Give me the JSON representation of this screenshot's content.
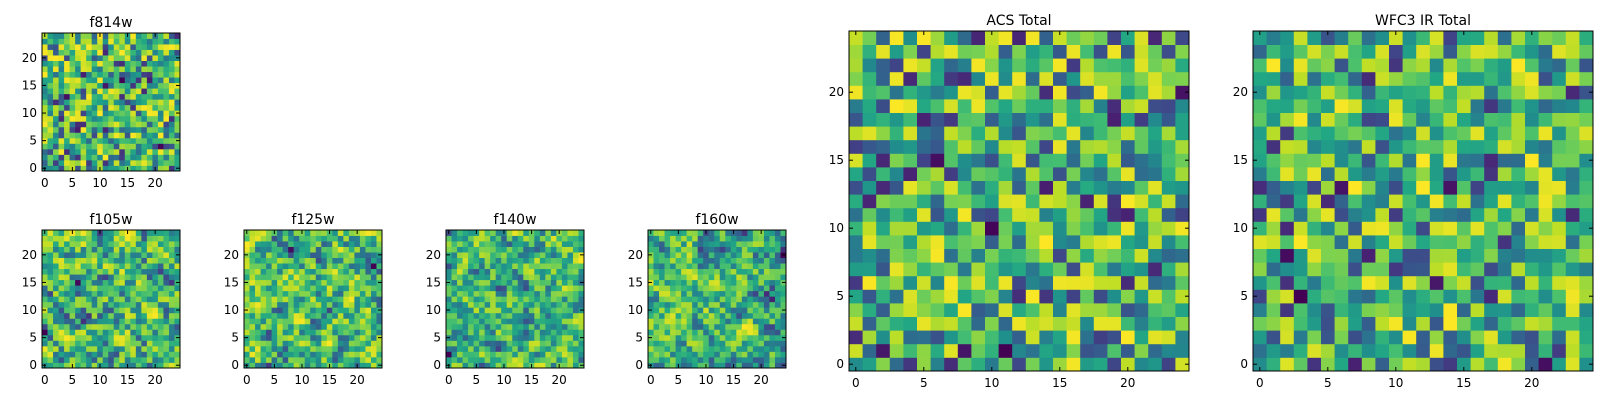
{
  "chart_data": [
    {
      "type": "heatmap",
      "title": "f814w",
      "x_ticks": [
        "0",
        "5",
        "10",
        "15",
        "20"
      ],
      "y_ticks": [
        "0",
        "5",
        "10",
        "15",
        "20"
      ],
      "grid_size": 25,
      "colormap": "viridis",
      "seed": 11,
      "smooth": 0
    },
    {
      "type": "heatmap",
      "title": "f105w",
      "x_ticks": [
        "0",
        "5",
        "10",
        "15",
        "20"
      ],
      "y_ticks": [
        "0",
        "5",
        "10",
        "15",
        "20"
      ],
      "grid_size": 25,
      "colormap": "viridis",
      "seed": 23,
      "smooth": 1
    },
    {
      "type": "heatmap",
      "title": "f125w",
      "x_ticks": [
        "0",
        "5",
        "10",
        "15",
        "20"
      ],
      "y_ticks": [
        "0",
        "5",
        "10",
        "15",
        "20"
      ],
      "grid_size": 25,
      "colormap": "viridis",
      "seed": 37,
      "smooth": 1
    },
    {
      "type": "heatmap",
      "title": "f140w",
      "x_ticks": [
        "0",
        "5",
        "10",
        "15",
        "20"
      ],
      "y_ticks": [
        "0",
        "5",
        "10",
        "15",
        "20"
      ],
      "grid_size": 25,
      "colormap": "viridis",
      "seed": 41,
      "smooth": 1
    },
    {
      "type": "heatmap",
      "title": "f160w",
      "x_ticks": [
        "0",
        "5",
        "10",
        "15",
        "20"
      ],
      "y_ticks": [
        "0",
        "5",
        "10",
        "15",
        "20"
      ],
      "grid_size": 25,
      "colormap": "viridis",
      "seed": 53,
      "smooth": 1
    },
    {
      "type": "heatmap",
      "title": "ACS Total",
      "x_ticks": [
        "0",
        "5",
        "10",
        "15",
        "20"
      ],
      "y_ticks": [
        "0",
        "5",
        "10",
        "15",
        "20"
      ],
      "grid_size": 25,
      "colormap": "viridis",
      "seed": 67,
      "smooth": 0
    },
    {
      "type": "heatmap",
      "title": "WFC3 IR Total",
      "x_ticks": [
        "0",
        "5",
        "10",
        "15",
        "20"
      ],
      "y_ticks": [
        "0",
        "5",
        "10",
        "15",
        "20"
      ],
      "grid_size": 25,
      "colormap": "viridis",
      "seed": 79,
      "smooth": 0
    }
  ],
  "colors": {
    "viridis_low": "#440154",
    "viridis_mid": "#21918c",
    "viridis_high": "#fde725"
  }
}
